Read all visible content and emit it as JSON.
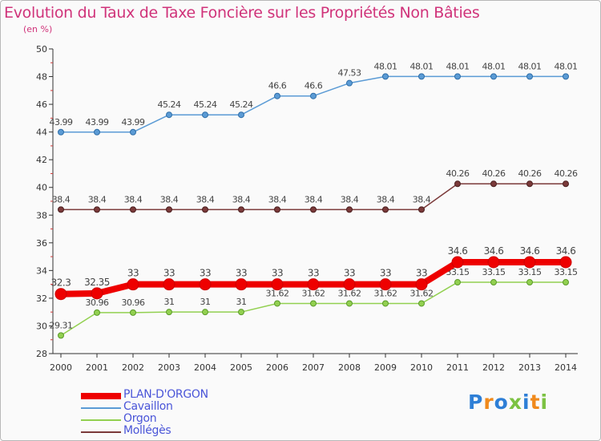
{
  "title": "Evolution du Taux de Taxe Foncière sur les Propriétés Non Bâties",
  "subtitle": "(en %)",
  "brand": {
    "letters": [
      "P",
      "r",
      "o",
      "x",
      "i",
      "t",
      "i"
    ],
    "colors": [
      "#2e7fd6",
      "#f08a1c",
      "#2e7fd6",
      "#7cc242",
      "#2e7fd6",
      "#f08a1c",
      "#7cc242"
    ]
  },
  "chart_data": {
    "type": "line",
    "title": "Evolution du Taux de Taxe Foncière sur les Propriétés Non Bâties",
    "ylabel": "(en %)",
    "xlabel": "",
    "ylim": [
      28,
      50
    ],
    "yticks": [
      "28",
      "30",
      "32",
      "34",
      "36",
      "38",
      "40",
      "42",
      "44",
      "46",
      "48",
      "50"
    ],
    "x": [
      "2000",
      "2001",
      "2002",
      "2003",
      "2004",
      "2005",
      "2006",
      "2007",
      "2008",
      "2009",
      "2010",
      "2011",
      "2012",
      "2013",
      "2014"
    ],
    "grid": false,
    "legend_position": "bottom-left",
    "series": [
      {
        "name": "Cavaillon",
        "color": "#5b9bd5",
        "values": [
          43.99,
          43.99,
          43.99,
          45.24,
          45.24,
          45.24,
          46.6,
          46.6,
          47.53,
          48.01,
          48.01,
          48.01,
          48.01,
          48.01,
          48.01
        ],
        "labels": [
          "43.99",
          "43.99",
          "43.99",
          "45.24",
          "45.24",
          "45.24",
          "46.6",
          "46.6",
          "47.53",
          "48.01",
          "48.01",
          "48.01",
          "48.01",
          "48.01",
          "48.01"
        ]
      },
      {
        "name": "Mollégès",
        "color": "#7b3a3a",
        "values": [
          38.4,
          38.4,
          38.4,
          38.4,
          38.4,
          38.4,
          38.4,
          38.4,
          38.4,
          38.4,
          38.4,
          40.26,
          40.26,
          40.26,
          40.26
        ],
        "labels": [
          "38.4",
          "38.4",
          "38.4",
          "38.4",
          "38.4",
          "38.4",
          "38.4",
          "38.4",
          "38.4",
          "38.4",
          "38.4",
          "40.26",
          "40.26",
          "40.26",
          "40.26"
        ]
      },
      {
        "name": "Orgon",
        "color": "#92d050",
        "values": [
          29.31,
          30.96,
          30.96,
          31,
          31,
          31,
          31.62,
          31.62,
          31.62,
          31.62,
          31.62,
          33.15,
          33.15,
          33.15,
          33.15
        ],
        "labels": [
          "29.31",
          "30.96",
          "30.96",
          "31",
          "31",
          "31",
          "31.62",
          "31.62",
          "31.62",
          "31.62",
          "31.62",
          "33.15",
          "33.15",
          "33.15",
          "33.15"
        ]
      },
      {
        "name": "PLAN-D'ORGON",
        "color": "#ee0000",
        "values": [
          32.3,
          32.35,
          33,
          33,
          33,
          33,
          33,
          33,
          33,
          33,
          33,
          34.6,
          34.6,
          34.6,
          34.6
        ],
        "labels": [
          "32.3",
          "32.35",
          "33",
          "33",
          "33",
          "33",
          "33",
          "33",
          "33",
          "33",
          "33",
          "34.6",
          "34.6",
          "34.6",
          "34.6"
        ]
      }
    ],
    "legend": [
      "PLAN-D'ORGON",
      "Cavaillon",
      "Orgon",
      "Mollégès"
    ]
  }
}
